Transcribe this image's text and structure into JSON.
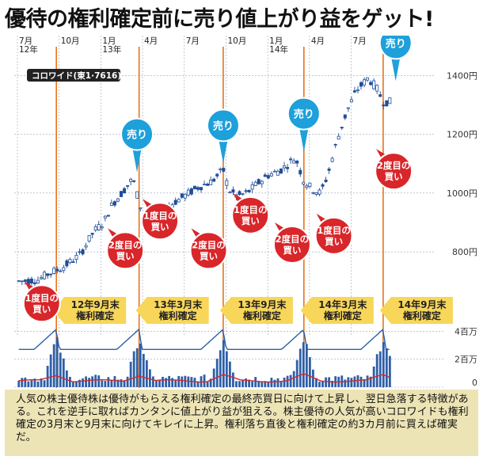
{
  "title": "優待の権利確定前に売り値上がり益をゲット!",
  "stock_label": "コロワイド(東1·7616)",
  "caption": "人気の株主優待株は優待がもらえる権利確定の最終売買日に向けて上昇し、翌日急落する特徴がある。これを逆手に取ればカンタンに値上がり益が狙える。株主優待の人気が高いコロワイドも権利確定の3月末と9月末に向けてキレイに上昇。権利落ち直後と権利確定の約3カ月前に買えば確実だ。",
  "colors": {
    "candle": "#1f4e9a",
    "volume_bar": "#2d5fa8",
    "volume_line_red": "#d8262a",
    "sell_bubble": "#1ea0da",
    "buy_bubble": "#d8262a",
    "vline": "#e8731a",
    "date_tag": "#f7d65a",
    "grid": "#9aa3b5"
  },
  "chart_data": {
    "type": "candlestick",
    "price_axis": {
      "ticks": [
        "1400円",
        "1200円",
        "1000円",
        "800円"
      ],
      "values": [
        1400,
        1200,
        1000,
        800
      ],
      "ylim": [
        620,
        1460
      ]
    },
    "volume_axis": {
      "ticks": [
        "4百万",
        "2百万",
        "0"
      ],
      "values": [
        4,
        2,
        0
      ],
      "unit": "百万株",
      "ylim": [
        0,
        4.3
      ]
    },
    "x_labels": [
      {
        "label": "7月\n12年",
        "t": 0
      },
      {
        "label": "10月",
        "t": 3
      },
      {
        "label": "1月\n13年",
        "t": 6
      },
      {
        "label": "4月",
        "t": 9
      },
      {
        "label": "7月",
        "t": 12
      },
      {
        "label": "10月",
        "t": 15
      },
      {
        "label": "1月\n14年",
        "t": 18
      },
      {
        "label": "4月",
        "t": 21
      },
      {
        "label": "7月",
        "t": 24
      }
    ],
    "price_path": [
      [
        0,
        700
      ],
      [
        1.5,
        705
      ],
      [
        2.2,
        725
      ],
      [
        3.2,
        745
      ],
      [
        4.5,
        790
      ],
      [
        5.5,
        870
      ],
      [
        6.2,
        900
      ],
      [
        6.8,
        960
      ],
      [
        7.5,
        1000
      ],
      [
        8.3,
        1050
      ],
      [
        8.8,
        960
      ],
      [
        9.3,
        900
      ],
      [
        9.8,
        860
      ],
      [
        10.2,
        930
      ],
      [
        11,
        960
      ],
      [
        12,
        990
      ],
      [
        13,
        1020
      ],
      [
        14,
        1040
      ],
      [
        14.8,
        1080
      ],
      [
        15.2,
        1010
      ],
      [
        15.8,
        990
      ],
      [
        16.5,
        1000
      ],
      [
        17.2,
        1030
      ],
      [
        18,
        1060
      ],
      [
        19,
        1080
      ],
      [
        20,
        1120
      ],
      [
        20.6,
        1040
      ],
      [
        21.3,
        1010
      ],
      [
        21.8,
        1000
      ],
      [
        22.3,
        1060
      ],
      [
        23,
        1180
      ],
      [
        23.7,
        1280
      ],
      [
        24.4,
        1350
      ],
      [
        25.2,
        1390
      ],
      [
        25.8,
        1360
      ],
      [
        26.3,
        1310
      ],
      [
        26.8,
        1310
      ]
    ],
    "volume_spikes_t": [
      2.8,
      8.75,
      14.8,
      20.6,
      26.3
    ],
    "events": [
      {
        "type": "buy",
        "label": "1度目の\n買い",
        "t": 0.5,
        "price": 700
      },
      {
        "type": "buy",
        "label": "2度目の\n買い",
        "t": 6.5,
        "price": 880
      },
      {
        "type": "sell",
        "label": "売り",
        "t": 8.6,
        "price": 1060
      },
      {
        "type": "buy",
        "label": "1度目の\n買い",
        "t": 9.0,
        "price": 980
      },
      {
        "type": "buy",
        "label": "2度目の\n買い",
        "t": 12.5,
        "price": 880
      },
      {
        "type": "sell",
        "label": "売り",
        "t": 14.8,
        "price": 1090
      },
      {
        "type": "buy",
        "label": "1度目の\n買い",
        "t": 15.5,
        "price": 1000
      },
      {
        "type": "buy",
        "label": "2度目の\n買い",
        "t": 18.5,
        "price": 900
      },
      {
        "type": "sell",
        "label": "売り",
        "t": 20.6,
        "price": 1130
      },
      {
        "type": "buy",
        "label": "1度目の\n買い",
        "t": 21.5,
        "price": 930
      },
      {
        "type": "buy",
        "label": "2度目の\n買い",
        "t": 25.8,
        "price": 1150
      },
      {
        "type": "sell",
        "label": "売り",
        "t": 27.2,
        "price": 1370
      }
    ],
    "record_dates": [
      {
        "label": "12年9月末\n権利確定",
        "t": 2.8
      },
      {
        "label": "13年3月末\n権利確定",
        "t": 8.75
      },
      {
        "label": "13年9月末\n権利確定",
        "t": 14.8
      },
      {
        "label": "14年3月末\n権利確定",
        "t": 20.6
      },
      {
        "label": "14年9月末\n権利確定",
        "t": 26.3
      }
    ]
  }
}
